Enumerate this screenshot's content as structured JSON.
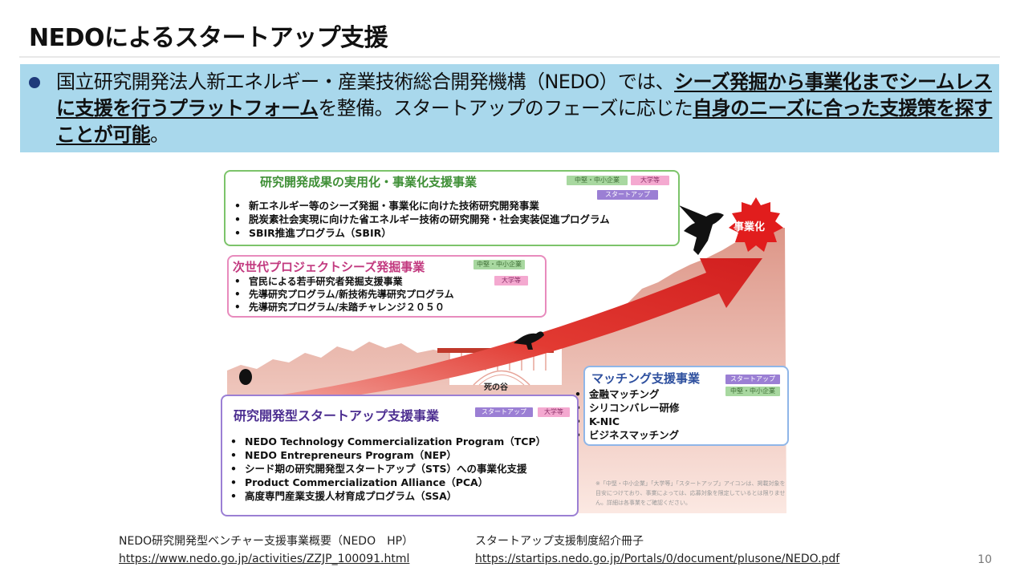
{
  "slide": {
    "title": "NEDOによるスタートアップ支援",
    "page_number": "10"
  },
  "banner": {
    "text_1": "国立研究開発法人新エネルギー・産業技術総合開発機構（NEDO）では、",
    "bold_1": "シーズ発掘から事業化までシームレスに支援を行うプラットフォーム",
    "text_2": "を整備。スタートアップのフェーズに応じた",
    "bold_2": "自身のニーズに合った支援策を探すことが可能",
    "text_3": "。"
  },
  "figure": {
    "box_green": {
      "title": "研究開発成果の実用化・事業化支援事業",
      "tags": [
        "中堅・中小企業",
        "大学等",
        "スタートアップ"
      ],
      "items": [
        "新エネルギー等のシーズ発掘・事業化に向けた技術研究開発事業",
        "脱炭素社会実現に向けた省エネルギー技術の研究開発・社会実装促進プログラム",
        "SBIR推進プログラム（SBIR）"
      ]
    },
    "box_pink": {
      "title": "次世代プロジェクトシーズ発掘事業",
      "tags": [
        "中堅・中小企業",
        "大学等"
      ],
      "items": [
        "官民による若手研究者発掘支援事業",
        "先導研究プログラム/新技術先導研究プログラム",
        "先導研究プログラム/未踏チャレンジ２０５０"
      ]
    },
    "box_purple": {
      "title": "研究開発型スタートアップ支援事業",
      "tags": [
        "スタートアップ",
        "大学等"
      ],
      "items": [
        "NEDO Technology Commercialization Program（TCP）",
        "NEDO Entrepreneurs Program（NEP）",
        "シード期の研究開発型スタートアップ（STS）への事業化支援",
        "Product Commercialization Alliance（PCA）",
        "高度専門産業支援人材育成プログラム（SSA）"
      ]
    },
    "box_blue": {
      "title": "マッチング支援事業",
      "tags": [
        "スタートアップ",
        "中堅・中小企業"
      ],
      "items": [
        "金融マッチング",
        "シリコンバレー研修",
        "K-NIC",
        "ビジネスマッチング"
      ]
    },
    "death_valley_label": "死の谷",
    "commercialization_label": "事業化",
    "footnote": "※「中堅・中小企業」「大学等」「スタートアップ」アイコンは、掲載対象を目安につけており、事業によっては、応募対象を限定しているとは限りません。詳細は各事業をご確認ください。"
  },
  "references": [
    {
      "label": "NEDO研究開発型ベンチャー支援事業概要（NEDO　HP）",
      "url": "https://www.nedo.go.jp/activities/ZZJP_100091.html"
    },
    {
      "label": "スタートアップ支援制度紹介冊子",
      "url": "https://startips.nedo.go.jp/Portals/0/document/plusone/NEDO.pdf"
    }
  ],
  "colors": {
    "banner_bg": "#a9d8ec",
    "green": "#7cc46a",
    "pink": "#e88bbd",
    "purple": "#9b7fd4",
    "blue": "#8fb6e8",
    "arrow_red": "#d92b2b"
  }
}
